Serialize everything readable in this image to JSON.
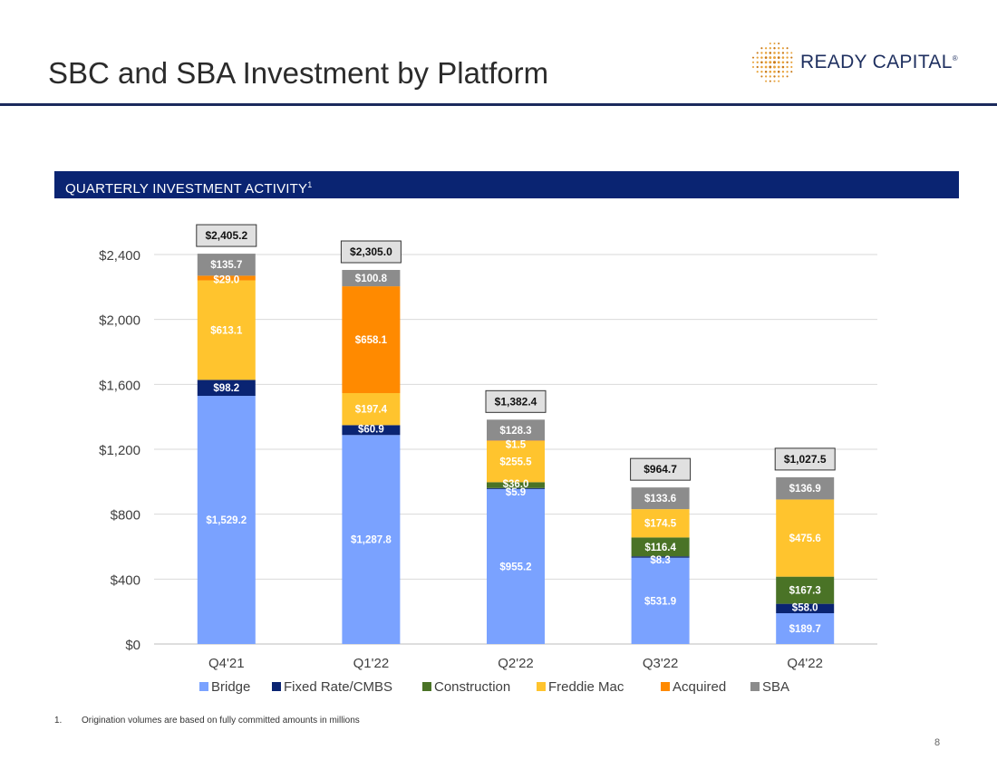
{
  "header": {
    "title": "SBC and SBA Investment by Platform",
    "logo_text": "READY CAPITAL",
    "logo_mark": "®"
  },
  "section": {
    "title": "QUARTERLY INVESTMENT ACTIVITY",
    "footnote_ref": "1"
  },
  "chart_data": {
    "type": "bar",
    "stacked": true,
    "categories": [
      "Q4'21",
      "Q1'22",
      "Q2'22",
      "Q3'22",
      "Q4'22"
    ],
    "series": [
      {
        "name": "Bridge",
        "color": "#7aa2ff",
        "values": [
          1529.2,
          1287.8,
          955.2,
          531.9,
          189.7
        ],
        "labels": [
          "$1,529.2",
          "$1,287.8",
          "$955.2",
          "$531.9",
          "$189.7"
        ]
      },
      {
        "name": "Fixed Rate/CMBS",
        "color": "#0a2472",
        "values": [
          98.2,
          60.9,
          5.9,
          8.3,
          58.0
        ],
        "labels": [
          "$98.2",
          "$60.9",
          "$5.9",
          "$8.3",
          "$58.0"
        ]
      },
      {
        "name": "Construction",
        "color": "#4a7326",
        "values": [
          0,
          0,
          36.0,
          116.4,
          167.3
        ],
        "labels": [
          "",
          "",
          "$36.0",
          "$116.4",
          "$167.3"
        ]
      },
      {
        "name": "Freddie Mac",
        "color": "#ffc42e",
        "values": [
          613.1,
          197.4,
          255.5,
          174.5,
          475.6
        ],
        "labels": [
          "$613.1",
          "$197.4",
          "$255.5",
          "$174.5",
          "$475.6"
        ]
      },
      {
        "name": "Acquired",
        "color": "#ff8a00",
        "values": [
          29.0,
          658.1,
          1.5,
          0,
          0
        ],
        "labels": [
          "$29.0",
          "$658.1",
          "$1.5",
          "",
          ""
        ]
      },
      {
        "name": "SBA",
        "color": "#8c8c8c",
        "values": [
          135.7,
          100.8,
          128.3,
          133.6,
          136.9
        ],
        "labels": [
          "$135.7",
          "$100.8",
          "$128.3",
          "$133.6",
          "$136.9"
        ]
      }
    ],
    "totals": [
      2405.2,
      2305.0,
      1382.4,
      964.7,
      1027.5
    ],
    "total_labels": [
      "$2,405.2",
      "$2,305.0",
      "$1,382.4",
      "$964.7",
      "$1,027.5"
    ],
    "ylim": [
      0,
      2400
    ],
    "yticks": [
      0,
      400,
      800,
      1200,
      1600,
      2000,
      2400
    ],
    "ytick_labels": [
      "$0",
      "$400",
      "$800",
      "$1,200",
      "$1,600",
      "$2,000",
      "$2,400"
    ],
    "grid": true,
    "legend_position": "bottom",
    "xlabel": "",
    "ylabel": ""
  },
  "footnote": {
    "number": "1.",
    "text": "Origination volumes are based on fully committed amounts in millions"
  },
  "page_number": "8"
}
